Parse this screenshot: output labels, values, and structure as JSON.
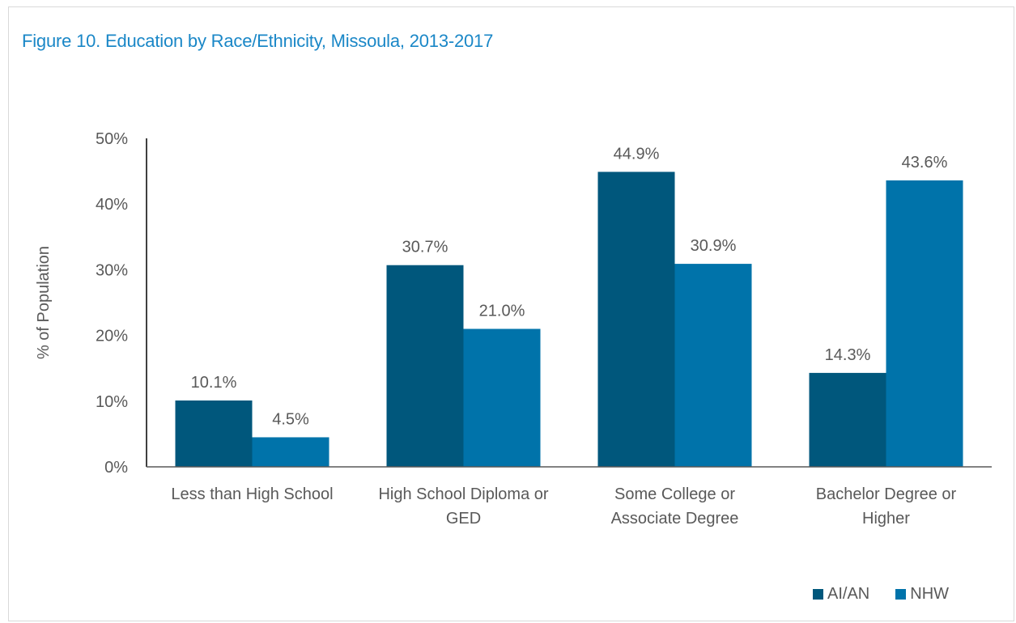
{
  "figure_title": "Figure 10. Education by Race/Ethnicity, Missoula, 2013-2017",
  "colors": {
    "title": "#1a87c7",
    "AI/AN": "#00577c",
    "NHW": "#0073aa",
    "text": "#595959"
  },
  "chart_data": {
    "type": "bar",
    "title": "Figure 10. Education by Race/Ethnicity, Missoula, 2013-2017",
    "xlabel": "",
    "ylabel": "% of Population",
    "ylim": [
      0,
      50
    ],
    "yticks": [
      "0%",
      "10%",
      "20%",
      "30%",
      "40%",
      "50%"
    ],
    "categories": [
      [
        "Less than High School"
      ],
      [
        "High School Diploma or",
        "GED"
      ],
      [
        "Some College or",
        "Associate Degree"
      ],
      [
        "Bachelor Degree or",
        "Higher"
      ]
    ],
    "series": [
      {
        "name": "AI/AN",
        "values": [
          10.1,
          30.7,
          44.9,
          14.3
        ],
        "labels": [
          "10.1%",
          "30.7%",
          "44.9%",
          "14.3%"
        ]
      },
      {
        "name": "NHW",
        "values": [
          4.5,
          21.0,
          30.9,
          43.6
        ],
        "labels": [
          "4.5%",
          "21.0%",
          "30.9%",
          "43.6%"
        ]
      }
    ],
    "legend_position": "bottom-right",
    "grid": false
  }
}
